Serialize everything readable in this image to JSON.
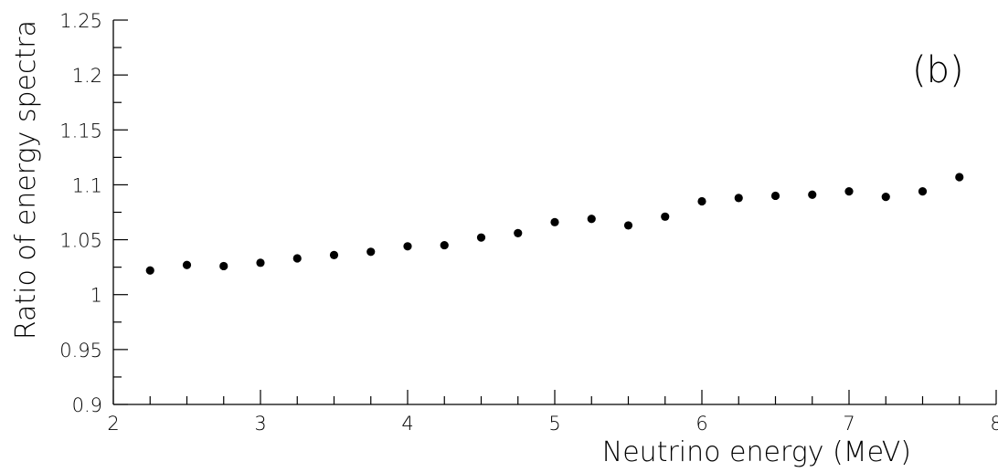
{
  "chart_data": {
    "type": "scatter",
    "xlabel": "Neutrino energy (MeV)",
    "ylabel": "Ratio of energy spectra",
    "annotation": "(b)",
    "xlim": [
      2,
      8
    ],
    "ylim": [
      0.9,
      1.25
    ],
    "x_ticks": [
      2,
      3,
      4,
      5,
      6,
      7,
      8
    ],
    "x_tick_labels": [
      "2",
      "3",
      "4",
      "5",
      "6",
      "7",
      "8"
    ],
    "y_ticks": [
      0.9,
      0.95,
      1,
      1.05,
      1.1,
      1.15,
      1.2,
      1.25
    ],
    "y_tick_labels": [
      "0.9",
      "0.95",
      "1",
      "1.05",
      "1.1",
      "1.15",
      "1.2",
      "1.25"
    ],
    "grid": false,
    "series": [
      {
        "x": [
          2.25,
          2.5,
          2.75,
          3.0,
          3.25,
          3.5,
          3.75,
          4.0,
          4.25,
          4.5,
          4.75,
          5.0,
          5.25,
          5.5,
          5.75,
          6.0,
          6.25,
          6.5,
          6.75,
          7.0,
          7.25,
          7.5,
          7.75
        ],
        "y": [
          1.022,
          1.027,
          1.026,
          1.029,
          1.033,
          1.036,
          1.039,
          1.044,
          1.045,
          1.052,
          1.056,
          1.066,
          1.069,
          1.063,
          1.071,
          1.085,
          1.088,
          1.09,
          1.091,
          1.094,
          1.089,
          1.094,
          1.107
        ]
      }
    ]
  }
}
